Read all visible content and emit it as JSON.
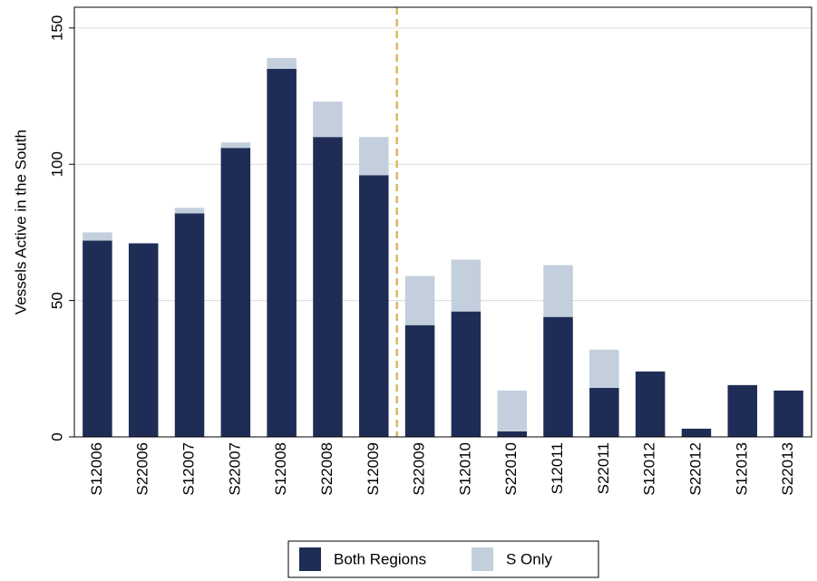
{
  "chart_data": {
    "type": "stacked_bar",
    "y_label": "Vessels Active in the South",
    "categories": [
      "S12006",
      "S22006",
      "S12007",
      "S22007",
      "S12008",
      "S22008",
      "S12009",
      "S22009",
      "S12010",
      "S22010",
      "S12011",
      "S22011",
      "S12012",
      "S22012",
      "S12013",
      "S22013"
    ],
    "series": [
      {
        "name": "Both Regions",
        "color": "#1f2d56",
        "values": [
          72,
          71,
          82,
          106,
          135,
          110,
          96,
          41,
          46,
          2,
          44,
          18,
          24,
          3,
          19,
          17
        ]
      },
      {
        "name": "S Only",
        "color": "#c3cfdc",
        "values": [
          3,
          0,
          2,
          2,
          4,
          13,
          14,
          18,
          19,
          15,
          19,
          14,
          0,
          0,
          0,
          0
        ]
      }
    ],
    "ylim": [
      0,
      157.6
    ],
    "yticks": [
      0,
      50,
      100,
      150
    ],
    "grid": true,
    "vline": {
      "x": 6.5,
      "color": "#d9b95e",
      "dashed": true
    },
    "legend": "bottom"
  }
}
